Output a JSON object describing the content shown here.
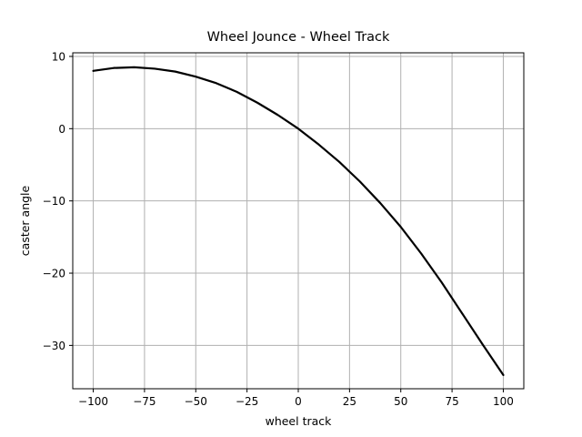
{
  "chart_data": {
    "type": "line",
    "title": "Wheel Jounce - Wheel Track",
    "xlabel": "wheel track",
    "ylabel": "caster angle",
    "xlim": [
      -110,
      110
    ],
    "ylim": [
      -36,
      10.5
    ],
    "xticks": [
      -100,
      -75,
      -50,
      -25,
      0,
      25,
      50,
      75,
      100
    ],
    "xtick_labels": [
      "−100",
      "−75",
      "−50",
      "−25",
      "0",
      "25",
      "50",
      "75",
      "100"
    ],
    "yticks": [
      10,
      0,
      -10,
      -20,
      -30
    ],
    "ytick_labels": [
      "10",
      "0",
      "−10",
      "−20",
      "−30"
    ],
    "grid": true,
    "series": [
      {
        "color": "#000000",
        "x": [
          -100,
          -90,
          -80,
          -70,
          -60,
          -50,
          -40,
          -30,
          -20,
          -10,
          0,
          10,
          20,
          30,
          40,
          50,
          60,
          70,
          80,
          90,
          100
        ],
        "y": [
          8.0,
          8.4,
          8.5,
          8.3,
          7.9,
          7.2,
          6.3,
          5.1,
          3.6,
          1.9,
          0.0,
          -2.2,
          -4.6,
          -7.3,
          -10.3,
          -13.6,
          -17.3,
          -21.3,
          -25.6,
          -29.9,
          -34.1
        ]
      }
    ]
  }
}
